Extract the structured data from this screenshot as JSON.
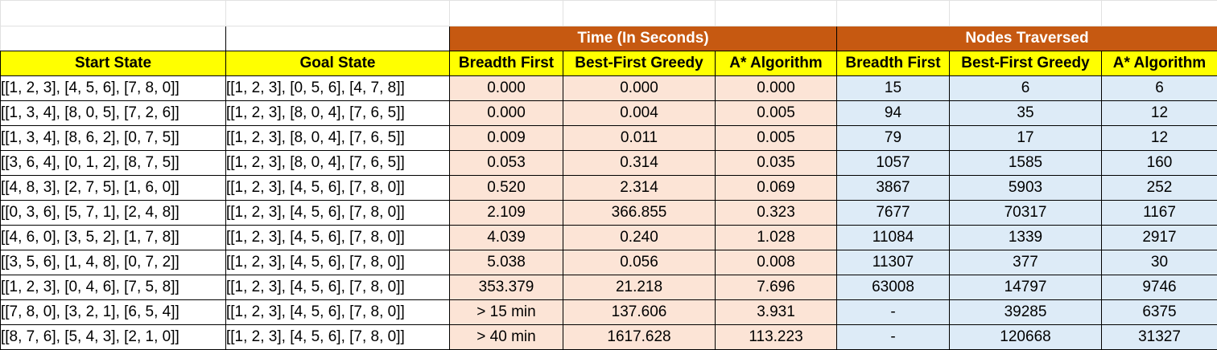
{
  "groups": {
    "time": "Time (In Seconds)",
    "nodes": "Nodes Traversed"
  },
  "headers": {
    "start": "Start State",
    "goal": "Goal State",
    "time_bfs": "Breadth First",
    "time_greedy": "Best-First Greedy",
    "time_astar": "A* Algorithm",
    "nodes_bfs": "Breadth First",
    "nodes_greedy": "Best-First Greedy",
    "nodes_astar": "A* Algorithm"
  },
  "rows": [
    {
      "start": "[[1, 2, 3], [4, 5, 6], [7, 8, 0]]",
      "goal": "[[1, 2, 3], [0, 5, 6], [4, 7, 8]]",
      "t_bfs": "0.000",
      "t_greedy": "0.000",
      "t_astar": "0.000",
      "n_bfs": "15",
      "n_greedy": "6",
      "n_astar": "6"
    },
    {
      "start": "[[1, 3, 4], [8, 0, 5], [7, 2, 6]]",
      "goal": "[[1, 2, 3], [8, 0, 4], [7, 6, 5]]",
      "t_bfs": "0.000",
      "t_greedy": "0.004",
      "t_astar": "0.005",
      "n_bfs": "94",
      "n_greedy": "35",
      "n_astar": "12"
    },
    {
      "start": "[[1, 3, 4], [8, 6, 2], [0, 7, 5]]",
      "goal": "[[1, 2, 3], [8, 0, 4], [7, 6, 5]]",
      "t_bfs": "0.009",
      "t_greedy": "0.011",
      "t_astar": "0.005",
      "n_bfs": "79",
      "n_greedy": "17",
      "n_astar": "12"
    },
    {
      "start": "[[3, 6, 4], [0, 1, 2], [8, 7, 5]]",
      "goal": "[[1, 2, 3], [8, 0, 4], [7, 6, 5]]",
      "t_bfs": "0.053",
      "t_greedy": "0.314",
      "t_astar": "0.035",
      "n_bfs": "1057",
      "n_greedy": "1585",
      "n_astar": "160"
    },
    {
      "start": "[[4, 8, 3], [2, 7, 5], [1, 6, 0]]",
      "goal": "[[1, 2, 3], [4, 5, 6], [7, 8, 0]]",
      "t_bfs": "0.520",
      "t_greedy": "2.314",
      "t_astar": "0.069",
      "n_bfs": "3867",
      "n_greedy": "5903",
      "n_astar": "252"
    },
    {
      "start": "[[0, 3, 6], [5, 7, 1], [2, 4, 8]]",
      "goal": "[[1, 2, 3], [4, 5, 6], [7, 8, 0]]",
      "t_bfs": "2.109",
      "t_greedy": "366.855",
      "t_astar": "0.323",
      "n_bfs": "7677",
      "n_greedy": "70317",
      "n_astar": "1167"
    },
    {
      "start": "[[4, 6, 0], [3, 5, 2], [1, 7, 8]]",
      "goal": "[[1, 2, 3], [4, 5, 6], [7, 8, 0]]",
      "t_bfs": "4.039",
      "t_greedy": "0.240",
      "t_astar": "1.028",
      "n_bfs": "11084",
      "n_greedy": "1339",
      "n_astar": "2917"
    },
    {
      "start": "[[3, 5, 6], [1, 4, 8], [0, 7, 2]]",
      "goal": "[[1, 2, 3], [4, 5, 6], [7, 8, 0]]",
      "t_bfs": "5.038",
      "t_greedy": "0.056",
      "t_astar": "0.008",
      "n_bfs": "11307",
      "n_greedy": "377",
      "n_astar": "30"
    },
    {
      "start": "[[1, 2, 3], [0, 4, 6], [7, 5, 8]]",
      "goal": "[[1, 2, 3], [4, 5, 6], [7, 8, 0]]",
      "t_bfs": "353.379",
      "t_greedy": "21.218",
      "t_astar": "7.696",
      "n_bfs": "63008",
      "n_greedy": "14797",
      "n_astar": "9746"
    },
    {
      "start": "[[7, 8, 0], [3, 2, 1], [6, 5, 4]]",
      "goal": "[[1, 2, 3], [4, 5, 6], [7, 8, 0]]",
      "t_bfs": "> 15 min",
      "t_greedy": "137.606",
      "t_astar": "3.931",
      "n_bfs": "-",
      "n_greedy": "39285",
      "n_astar": "6375"
    },
    {
      "start": "[[8, 7, 6], [5, 4, 3], [2, 1, 0]]",
      "goal": "[[1, 2, 3], [4, 5, 6], [7, 8, 0]]",
      "t_bfs": "> 40 min",
      "t_greedy": "1617.628",
      "t_astar": "113.223",
      "n_bfs": "-",
      "n_greedy": "120668",
      "n_astar": "31327"
    }
  ]
}
